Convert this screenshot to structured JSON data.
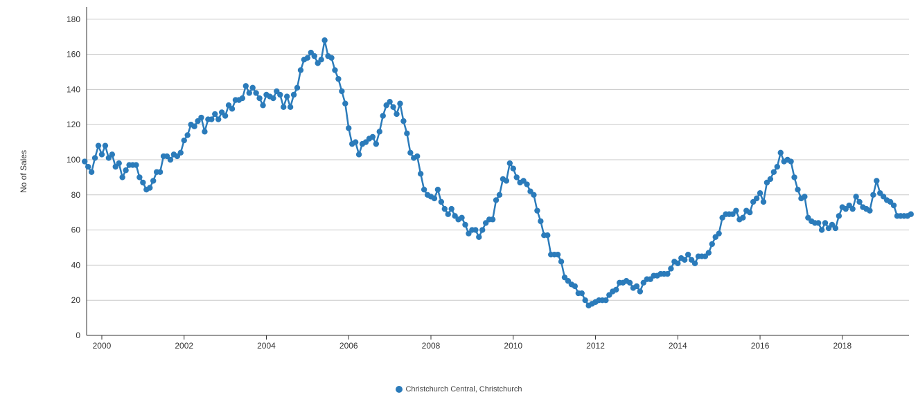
{
  "chart_data": {
    "type": "line",
    "title": "",
    "xlabel": "",
    "ylabel": "No of Sales",
    "xlim": [
      1999.63,
      2019.62
    ],
    "ylim": [
      0,
      187
    ],
    "x_ticks": [
      2000,
      2002,
      2004,
      2006,
      2008,
      2010,
      2012,
      2014,
      2016,
      2018
    ],
    "x_tick_labels": [
      "2000",
      "2002",
      "2004",
      "2006",
      "2008",
      "2010",
      "2012",
      "2014",
      "2016",
      "2018"
    ],
    "y_ticks": [
      0,
      20,
      40,
      60,
      80,
      100,
      120,
      140,
      160,
      180
    ],
    "y_tick_labels": [
      "0",
      "20",
      "40",
      "60",
      "80",
      "100",
      "120",
      "140",
      "160",
      "180"
    ],
    "grid": true,
    "legend_position": "bottom-center",
    "series": [
      {
        "name": "Christchurch Central, Christchurch",
        "color": "#2b7bba",
        "start": "1999-08",
        "frequency": "monthly",
        "values": [
          99,
          96,
          93,
          101,
          108,
          103,
          108,
          101,
          103,
          96,
          98,
          90,
          94,
          97,
          97,
          97,
          90,
          87,
          83,
          84,
          88,
          93,
          93,
          102,
          102,
          100,
          103,
          102,
          104,
          111,
          114,
          120,
          119,
          122,
          124,
          116,
          123,
          123,
          126,
          123,
          127,
          125,
          131,
          129,
          134,
          134,
          135,
          142,
          138,
          141,
          138,
          135,
          131,
          137,
          136,
          135,
          139,
          137,
          130,
          136,
          130,
          137,
          141,
          151,
          157,
          158,
          161,
          159,
          155,
          157,
          168,
          159,
          158,
          151,
          146,
          139,
          132,
          118,
          109,
          110,
          103,
          109,
          110,
          112,
          113,
          109,
          116,
          125,
          131,
          133,
          130,
          126,
          132,
          122,
          115,
          104,
          101,
          102,
          92,
          83,
          80,
          79,
          78,
          83,
          76,
          72,
          69,
          72,
          68,
          66,
          67,
          63,
          58,
          60,
          60,
          56,
          60,
          64,
          66,
          66,
          77,
          80,
          89,
          88,
          98,
          95,
          90,
          87,
          88,
          86,
          82,
          80,
          71,
          65,
          57,
          57,
          46,
          46,
          46,
          42,
          33,
          31,
          29,
          28,
          24,
          24,
          20,
          17,
          18,
          19,
          20,
          20,
          20,
          23,
          25,
          26,
          30,
          30,
          31,
          30,
          27,
          28,
          25,
          30,
          32,
          32,
          34,
          34,
          35,
          35,
          35,
          38,
          42,
          41,
          44,
          43,
          46,
          43,
          41,
          45,
          45,
          45,
          47,
          52,
          56,
          58,
          67,
          69,
          69,
          69,
          71,
          66,
          67,
          71,
          70,
          76,
          78,
          81,
          76,
          87,
          89,
          93,
          96,
          104,
          99,
          100,
          99,
          90,
          83,
          78,
          79,
          67,
          65,
          64,
          64,
          60,
          64,
          61,
          63,
          61,
          68,
          73,
          72,
          74,
          72,
          79,
          76,
          73,
          72,
          71,
          80,
          88,
          81,
          79,
          77,
          76,
          74,
          68,
          68,
          68,
          68,
          69
        ]
      }
    ]
  }
}
